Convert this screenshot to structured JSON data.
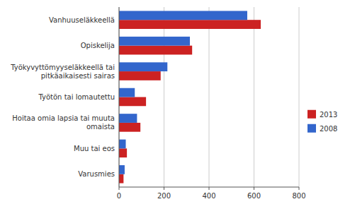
{
  "chart_data": {
    "type": "bar",
    "orientation": "horizontal",
    "categories": [
      "Vanhuuseläkkeellä",
      "Opiskelija",
      "Työkyvyttömyyseläkkeellä tai\npitkäaikaisesti sairas",
      "Työtön tai lomautettu",
      "Hoitaa omia lapsia tai muuta\nomaista",
      "Muu tai eos",
      "Varusmies"
    ],
    "series": [
      {
        "name": "2013",
        "color": "#cc2222",
        "values": [
          630,
          325,
          185,
          120,
          95,
          35,
          20
        ]
      },
      {
        "name": "2008",
        "color": "#3366cc",
        "values": [
          570,
          315,
          215,
          70,
          80,
          30,
          25
        ]
      }
    ],
    "xlim": [
      0,
      800
    ],
    "xticks": [
      0,
      200,
      400,
      600,
      800
    ],
    "grid": true,
    "legend": "right"
  }
}
